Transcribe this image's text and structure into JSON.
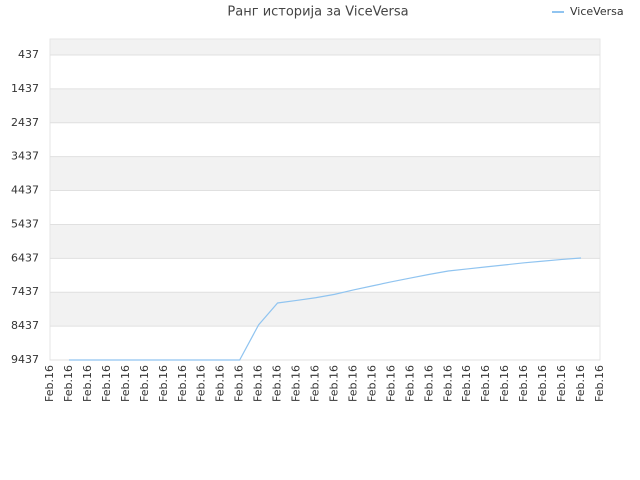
{
  "chart_data": {
    "type": "line",
    "title": "Ранг историја за ViceVersa",
    "categories": [
      "Feb.16",
      "Feb.16",
      "Feb.16",
      "Feb.16",
      "Feb.16",
      "Feb.16",
      "Feb.16",
      "Feb.16",
      "Feb.16",
      "Feb.16",
      "Feb.16",
      "Feb.16",
      "Feb.16",
      "Feb.16",
      "Feb.16",
      "Feb.16",
      "Feb.16",
      "Feb.16",
      "Feb.16",
      "Feb.16",
      "Feb.16",
      "Feb.16",
      "Feb.16",
      "Feb.16",
      "Feb.16",
      "Feb.16",
      "Feb.16",
      "Feb.16",
      "Feb.16",
      "Feb.16"
    ],
    "series": [
      {
        "name": "ViceVersa",
        "color": "#90c4f0",
        "values": [
          null,
          9437,
          9437,
          9437,
          9437,
          9437,
          9437,
          9437,
          9437,
          9437,
          9437,
          8400,
          7755,
          7680,
          7600,
          7500,
          7370,
          7250,
          7130,
          7020,
          6910,
          6810,
          6750,
          6690,
          6630,
          6570,
          6520,
          6470,
          6427,
          null
        ]
      }
    ],
    "ylim": [
      -35,
      9437
    ],
    "inverted": true,
    "yticks": [
      437,
      1437,
      2437,
      3437,
      4437,
      5437,
      6437,
      7437,
      8437,
      9437
    ],
    "bands": true,
    "legend": "top-right"
  }
}
